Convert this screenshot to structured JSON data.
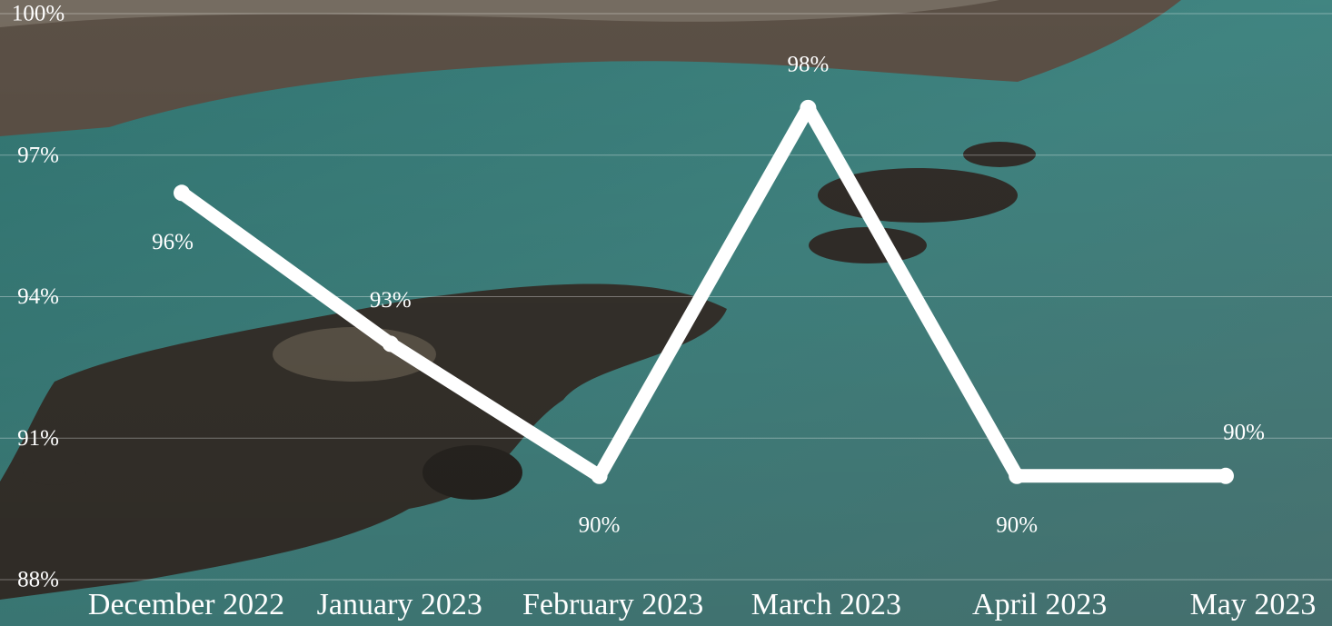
{
  "chart_data": {
    "type": "line",
    "categories": [
      "December 2022",
      "January 2023",
      "February 2023",
      "March 2023",
      "April 2023",
      "May 2023"
    ],
    "values": [
      96.2,
      93,
      90.2,
      98,
      90.2,
      90.2
    ],
    "value_labels": [
      "96%",
      "93%",
      "90%",
      "98%",
      "90%",
      "90%"
    ],
    "color": "#ffffff",
    "ylim": [
      88,
      100
    ],
    "yticks": [
      {
        "value": 88,
        "label": "88%"
      },
      {
        "value": 91,
        "label": "91%"
      },
      {
        "value": 94,
        "label": "94%"
      },
      {
        "value": 97,
        "label": "97%"
      },
      {
        "value": 100,
        "label": "100%"
      }
    ],
    "grid": true
  }
}
